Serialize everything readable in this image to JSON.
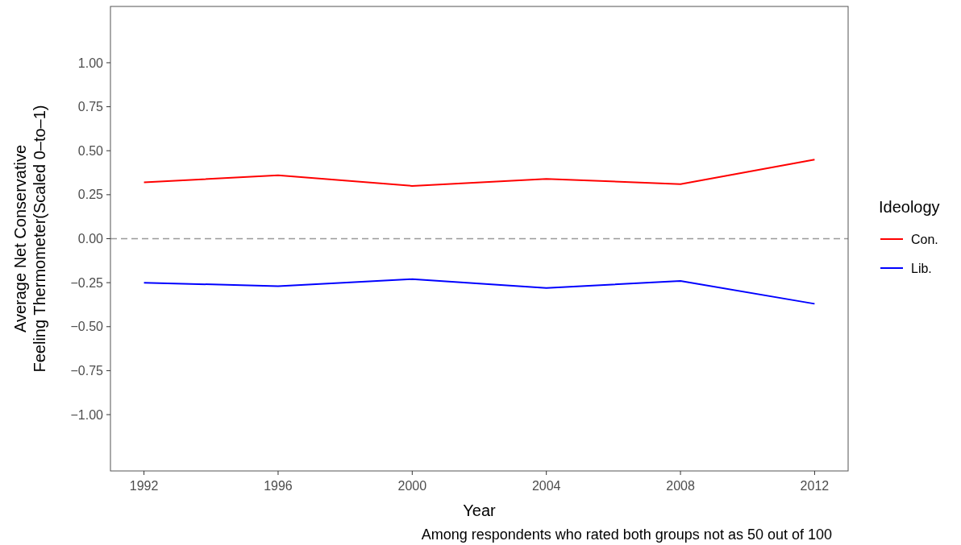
{
  "chart_data": {
    "type": "line",
    "xlabel": "Year",
    "ylabel": "Average Net Conservative\nFeeling Thermometer(Scaled 0–to–1)",
    "legend_title": "Ideology",
    "legend": "right",
    "x": [
      1992,
      1996,
      2000,
      2004,
      2008,
      2012
    ],
    "series": [
      {
        "name": "Con.",
        "color": "#ff0000",
        "values": [
          0.32,
          0.36,
          0.3,
          0.34,
          0.31,
          0.45
        ]
      },
      {
        "name": "Lib.",
        "color": "#0000ff",
        "values": [
          -0.25,
          -0.27,
          -0.23,
          -0.28,
          -0.24,
          -0.37
        ]
      }
    ],
    "xlim": [
      1991,
      2013
    ],
    "xticks": [
      1992,
      1996,
      2000,
      2004,
      2008,
      2012
    ],
    "ylim": [
      -1.32,
      1.32
    ],
    "yticks": [
      {
        "value": -1,
        "label": "−1.00"
      },
      {
        "value": -0.75,
        "label": "−0.75"
      },
      {
        "value": -0.5,
        "label": "−0.50"
      },
      {
        "value": -0.25,
        "label": "−0.25"
      },
      {
        "value": 0,
        "label": "0.00"
      },
      {
        "value": 0.25,
        "label": "0.25"
      },
      {
        "value": 0.5,
        "label": "0.50"
      },
      {
        "value": 0.75,
        "label": "0.75"
      },
      {
        "value": 1,
        "label": "1.00"
      }
    ],
    "ref_lines": [
      {
        "axis": "y",
        "value": 0,
        "color": "#999999",
        "line_style": "dashed"
      }
    ],
    "annotations": [
      "Among respondents who rated both groups not as 50 out of 100"
    ],
    "grid": false,
    "line_style": "solid"
  }
}
